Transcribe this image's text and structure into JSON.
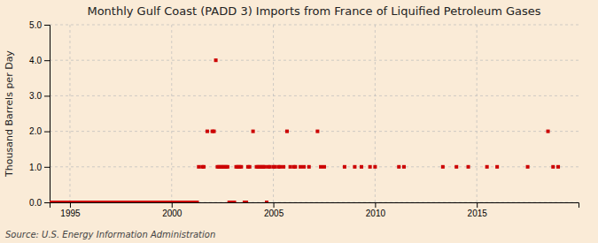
{
  "chart_data": {
    "type": "scatter",
    "title": "Monthly Gulf Coast (PADD 3) Imports from France of Liquified Petroleum Gases",
    "ylabel": "Thousand Barrels per Day",
    "annotations": [
      "Source: U.S. Energy Information Administration"
    ],
    "color": "#cc0000",
    "marker": "square",
    "grid": true,
    "xlim": [
      1994.0,
      2020.0
    ],
    "ylim": [
      0.0,
      5.0
    ],
    "xticks": [
      1995,
      2000,
      2005,
      2010,
      2015
    ],
    "yticks": [
      {
        "value": 0.0,
        "label": "0.0"
      },
      {
        "value": 1.0,
        "label": "1.0"
      },
      {
        "value": 2.0,
        "label": "2.0"
      },
      {
        "value": 3.0,
        "label": "3.0"
      },
      {
        "value": 4.0,
        "label": "4.0"
      },
      {
        "value": 5.0,
        "label": "5.0"
      }
    ],
    "x": [
      1994.08,
      1994.17,
      1994.25,
      1994.33,
      1994.42,
      1994.5,
      1994.58,
      1994.67,
      1994.75,
      1994.83,
      1994.92,
      1995.0,
      1995.08,
      1995.17,
      1995.25,
      1995.33,
      1995.42,
      1995.5,
      1995.58,
      1995.67,
      1995.75,
      1995.83,
      1995.92,
      1996.0,
      1996.08,
      1996.17,
      1996.25,
      1996.33,
      1996.42,
      1996.5,
      1996.58,
      1996.67,
      1996.75,
      1996.83,
      1996.92,
      1997.0,
      1997.08,
      1997.17,
      1997.25,
      1997.33,
      1997.42,
      1997.5,
      1997.58,
      1997.67,
      1997.75,
      1997.83,
      1997.92,
      1998.0,
      1998.08,
      1998.17,
      1998.25,
      1998.33,
      1998.42,
      1998.5,
      1998.58,
      1998.67,
      1998.75,
      1998.83,
      1998.92,
      1999.0,
      1999.08,
      1999.17,
      1999.25,
      1999.33,
      1999.42,
      1999.5,
      1999.58,
      1999.67,
      1999.75,
      1999.83,
      1999.92,
      2000.0,
      2000.08,
      2000.17,
      2000.25,
      2000.33,
      2000.42,
      2000.5,
      2000.58,
      2000.67,
      2000.75,
      2000.83,
      2000.92,
      2001.0,
      2001.08,
      2001.17,
      2001.25,
      2001.33,
      2001.5,
      2001.58,
      2001.75,
      2002.0,
      2002.08,
      2002.17,
      2002.25,
      2002.33,
      2002.42,
      2002.5,
      2002.58,
      2002.67,
      2002.75,
      2002.83,
      2002.92,
      2003.0,
      2003.08,
      2003.17,
      2003.25,
      2003.33,
      2003.42,
      2003.58,
      2003.67,
      2003.75,
      2003.83,
      2004.0,
      2004.17,
      2004.25,
      2004.33,
      2004.42,
      2004.5,
      2004.58,
      2004.67,
      2004.75,
      2004.83,
      2005.0,
      2005.08,
      2005.25,
      2005.33,
      2005.5,
      2005.67,
      2005.83,
      2006.0,
      2006.08,
      2006.33,
      2006.5,
      2006.75,
      2007.17,
      2007.33,
      2007.5,
      2008.5,
      2009.0,
      2009.33,
      2009.75,
      2010.0,
      2011.17,
      2011.42,
      2013.33,
      2014.0,
      2014.58,
      2015.5,
      2016.0,
      2017.5,
      2018.5,
      2018.75,
      2019.0
    ],
    "values": [
      0,
      0,
      0,
      0,
      0,
      0,
      0,
      0,
      0,
      0,
      0,
      0,
      0,
      0,
      0,
      0,
      0,
      0,
      0,
      0,
      0,
      0,
      0,
      0,
      0,
      0,
      0,
      0,
      0,
      0,
      0,
      0,
      0,
      0,
      0,
      0,
      0,
      0,
      0,
      0,
      0,
      0,
      0,
      0,
      0,
      0,
      0,
      0,
      0,
      0,
      0,
      0,
      0,
      0,
      0,
      0,
      0,
      0,
      0,
      0,
      0,
      0,
      0,
      0,
      0,
      0,
      0,
      0,
      0,
      0,
      0,
      0,
      0,
      0,
      0,
      0,
      0,
      0,
      0,
      0,
      0,
      0,
      0,
      0,
      0,
      0,
      0,
      1.0,
      1.0,
      1.0,
      2.0,
      2.0,
      2.0,
      4.0,
      1.0,
      1.0,
      1.0,
      1.0,
      1.0,
      1.0,
      1.0,
      0,
      0,
      0,
      0,
      1.0,
      1.0,
      1.0,
      1.0,
      0,
      0,
      1.0,
      1.0,
      2.0,
      1.0,
      1.0,
      1.0,
      1.0,
      1.0,
      1.0,
      0,
      1.0,
      1.0,
      1.0,
      1.0,
      1.0,
      1.0,
      1.0,
      2.0,
      1.0,
      1.0,
      1.0,
      1.0,
      1.0,
      1.0,
      2.0,
      1.0,
      1.0,
      1.0,
      1.0,
      1.0,
      1.0,
      1.0,
      1.0,
      1.0,
      1.0,
      1.0,
      1.0,
      1.0,
      1.0,
      1.0,
      2.0,
      1.0,
      1.0
    ]
  }
}
